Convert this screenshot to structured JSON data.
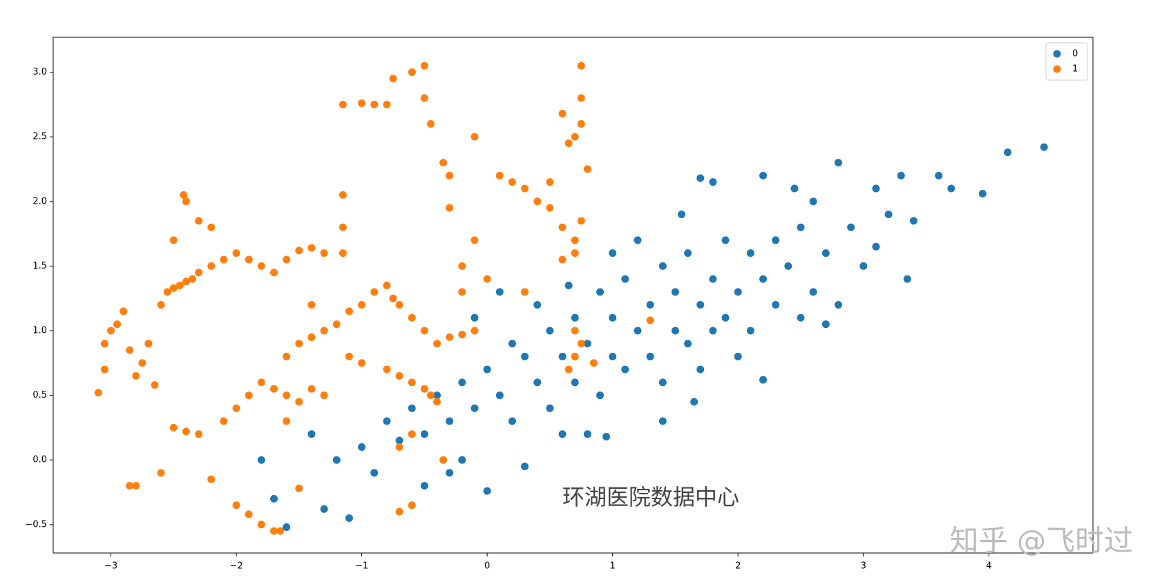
{
  "chart_data": {
    "type": "scatter",
    "series": [
      {
        "name": "0",
        "color": "#1f77b4",
        "x": [
          -1.6,
          -1.7,
          -1.3,
          -1.1,
          -1.4,
          -1.2,
          -1.0,
          -0.9,
          -0.8,
          -0.7,
          -0.6,
          -0.5,
          -0.4,
          -0.3,
          -0.2,
          -0.1,
          0.0,
          0.0,
          0.1,
          0.2,
          0.3,
          0.3,
          0.4,
          0.5,
          0.5,
          0.6,
          0.7,
          0.7,
          0.8,
          0.9,
          0.9,
          1.0,
          1.0,
          1.1,
          1.1,
          1.2,
          1.3,
          1.3,
          1.4,
          1.4,
          1.5,
          1.5,
          1.6,
          1.6,
          1.7,
          1.7,
          1.8,
          1.8,
          1.9,
          1.9,
          2.0,
          2.0,
          2.1,
          2.1,
          2.2,
          2.2,
          2.3,
          2.3,
          2.4,
          2.5,
          2.5,
          2.6,
          2.6,
          2.7,
          2.8,
          2.8,
          2.9,
          3.0,
          3.1,
          3.2,
          3.3,
          3.35,
          3.6,
          3.7,
          3.95,
          4.15,
          4.44,
          1.65,
          0.8,
          0.95,
          1.4,
          0.6,
          -0.2,
          -0.5,
          0.2,
          0.4,
          1.0,
          1.2,
          1.7,
          1.8,
          2.2,
          2.7,
          3.1,
          3.4,
          0.1,
          -0.1,
          -1.8,
          -0.3,
          0.65,
          1.55,
          2.45
        ],
        "y": [
          -0.52,
          -0.3,
          -0.38,
          -0.45,
          0.2,
          0.0,
          0.1,
          -0.1,
          0.3,
          0.15,
          0.4,
          0.2,
          0.5,
          0.3,
          0.6,
          0.4,
          -0.24,
          0.7,
          0.5,
          0.3,
          -0.05,
          0.8,
          0.6,
          1.0,
          0.4,
          0.8,
          0.6,
          1.1,
          0.9,
          0.5,
          1.3,
          0.8,
          1.1,
          0.7,
          1.4,
          1.0,
          0.8,
          1.2,
          1.5,
          0.6,
          1.0,
          1.3,
          0.9,
          1.6,
          1.2,
          0.7,
          1.4,
          1.0,
          1.7,
          1.1,
          1.3,
          0.8,
          1.6,
          1.0,
          1.4,
          2.2,
          1.2,
          1.7,
          1.5,
          1.1,
          1.8,
          1.3,
          2.0,
          1.6,
          1.2,
          2.3,
          1.8,
          1.5,
          2.1,
          1.9,
          2.2,
          1.4,
          2.2,
          2.1,
          2.06,
          2.38,
          2.42,
          0.45,
          0.2,
          0.18,
          0.3,
          0.2,
          0.0,
          -0.2,
          0.9,
          1.2,
          1.6,
          1.7,
          2.18,
          2.15,
          0.62,
          1.05,
          1.65,
          1.85,
          1.3,
          1.1,
          0.0,
          -0.1,
          1.35,
          1.9,
          2.1
        ]
      },
      {
        "name": "1",
        "color": "#ff7f0e",
        "x": [
          -3.1,
          -3.05,
          -3.05,
          -3.0,
          -2.95,
          -2.9,
          -2.85,
          -2.8,
          -2.75,
          -2.7,
          -2.65,
          -2.6,
          -2.55,
          -2.5,
          -2.45,
          -2.4,
          -2.35,
          -2.3,
          -2.2,
          -2.1,
          -2.0,
          -1.9,
          -1.8,
          -1.7,
          -1.6,
          -1.5,
          -1.4,
          -1.3,
          -2.42,
          -2.4,
          -2.5,
          -2.3,
          -2.2,
          -2.85,
          -2.8,
          -2.6,
          -2.5,
          -2.4,
          -2.3,
          -2.2,
          -2.1,
          -2.0,
          -1.9,
          -1.8,
          -1.7,
          -1.6,
          -1.5,
          -1.4,
          -1.3,
          -2.0,
          -1.9,
          -1.8,
          -1.7,
          -1.65,
          -1.5,
          -1.6,
          -1.5,
          -1.4,
          -1.3,
          -1.2,
          -1.1,
          -1.0,
          -1.15,
          -1.15,
          -1.15,
          -1.15,
          -1.0,
          -0.9,
          -0.8,
          -0.75,
          -0.6,
          -0.5,
          -0.5,
          -0.45,
          -0.35,
          -0.3,
          -0.1,
          0.1,
          0.2,
          0.3,
          0.4,
          0.5,
          0.5,
          0.6,
          0.7,
          0.75,
          0.6,
          0.7,
          0.75,
          0.75,
          0.75,
          0.7,
          0.65,
          0.6,
          0.8,
          -0.9,
          -0.8,
          -0.75,
          -0.7,
          -0.6,
          -0.5,
          -0.4,
          -0.3,
          -0.2,
          -0.1,
          -0.8,
          -0.7,
          -0.6,
          -0.5,
          -0.45,
          -0.4,
          -1.0,
          -1.1,
          -0.2,
          -0.2,
          -0.1,
          -0.3,
          0.0,
          0.3,
          0.7,
          0.75,
          0.7,
          0.65,
          0.85,
          1.3,
          -0.7,
          -0.6,
          -0.7,
          -0.6,
          -0.35,
          -1.4,
          -1.6
        ],
        "y": [
          0.52,
          0.7,
          0.9,
          1.0,
          1.05,
          1.15,
          0.85,
          0.65,
          0.75,
          0.9,
          0.58,
          1.2,
          1.3,
          1.33,
          1.35,
          1.38,
          1.4,
          1.45,
          1.5,
          1.55,
          1.6,
          1.55,
          1.5,
          1.45,
          1.55,
          1.62,
          1.64,
          1.6,
          2.05,
          2.0,
          1.7,
          1.85,
          1.8,
          -0.2,
          -0.2,
          -0.1,
          0.25,
          0.22,
          0.2,
          -0.15,
          0.3,
          0.4,
          0.5,
          0.6,
          0.55,
          0.5,
          0.45,
          0.55,
          0.5,
          -0.35,
          -0.42,
          -0.5,
          -0.55,
          -0.55,
          -0.22,
          0.8,
          0.9,
          0.95,
          1.0,
          1.05,
          1.15,
          1.2,
          1.6,
          1.8,
          2.05,
          2.75,
          2.76,
          2.75,
          2.75,
          2.95,
          3.0,
          3.05,
          2.8,
          2.6,
          2.3,
          2.2,
          2.5,
          2.2,
          2.15,
          2.1,
          2.0,
          1.95,
          2.15,
          1.8,
          1.7,
          1.85,
          1.55,
          1.6,
          3.05,
          2.8,
          2.6,
          2.5,
          2.45,
          2.68,
          2.25,
          1.3,
          1.35,
          1.25,
          1.2,
          1.1,
          1.0,
          0.9,
          0.95,
          0.97,
          1.0,
          0.7,
          0.65,
          0.6,
          0.55,
          0.5,
          0.45,
          0.75,
          0.8,
          1.3,
          1.5,
          1.7,
          1.95,
          1.4,
          1.3,
          1.0,
          0.9,
          0.8,
          0.7,
          0.75,
          1.08,
          -0.4,
          -0.35,
          0.1,
          0.2,
          0.0,
          1.2,
          0.3
        ]
      }
    ],
    "xlim": [
      -3.46,
      4.83
    ],
    "ylim": [
      -0.72,
      3.27
    ],
    "xticks": [
      {
        "value": -3,
        "label": "−3"
      },
      {
        "value": -2,
        "label": "−2"
      },
      {
        "value": -1,
        "label": "−1"
      },
      0,
      1,
      2,
      3,
      4
    ],
    "yticks": [
      {
        "value": -0.5,
        "label": "−0.5"
      },
      {
        "value": 0,
        "label": "0.0"
      },
      0.5,
      {
        "value": 1,
        "label": "1.0"
      },
      1.5,
      {
        "value": 2,
        "label": "2.0"
      },
      2.5,
      {
        "value": 3,
        "label": "3.0"
      }
    ],
    "legend": "upper right",
    "annotations": [
      "环湖医院数据中心",
      "知乎 @飞时过"
    ]
  }
}
